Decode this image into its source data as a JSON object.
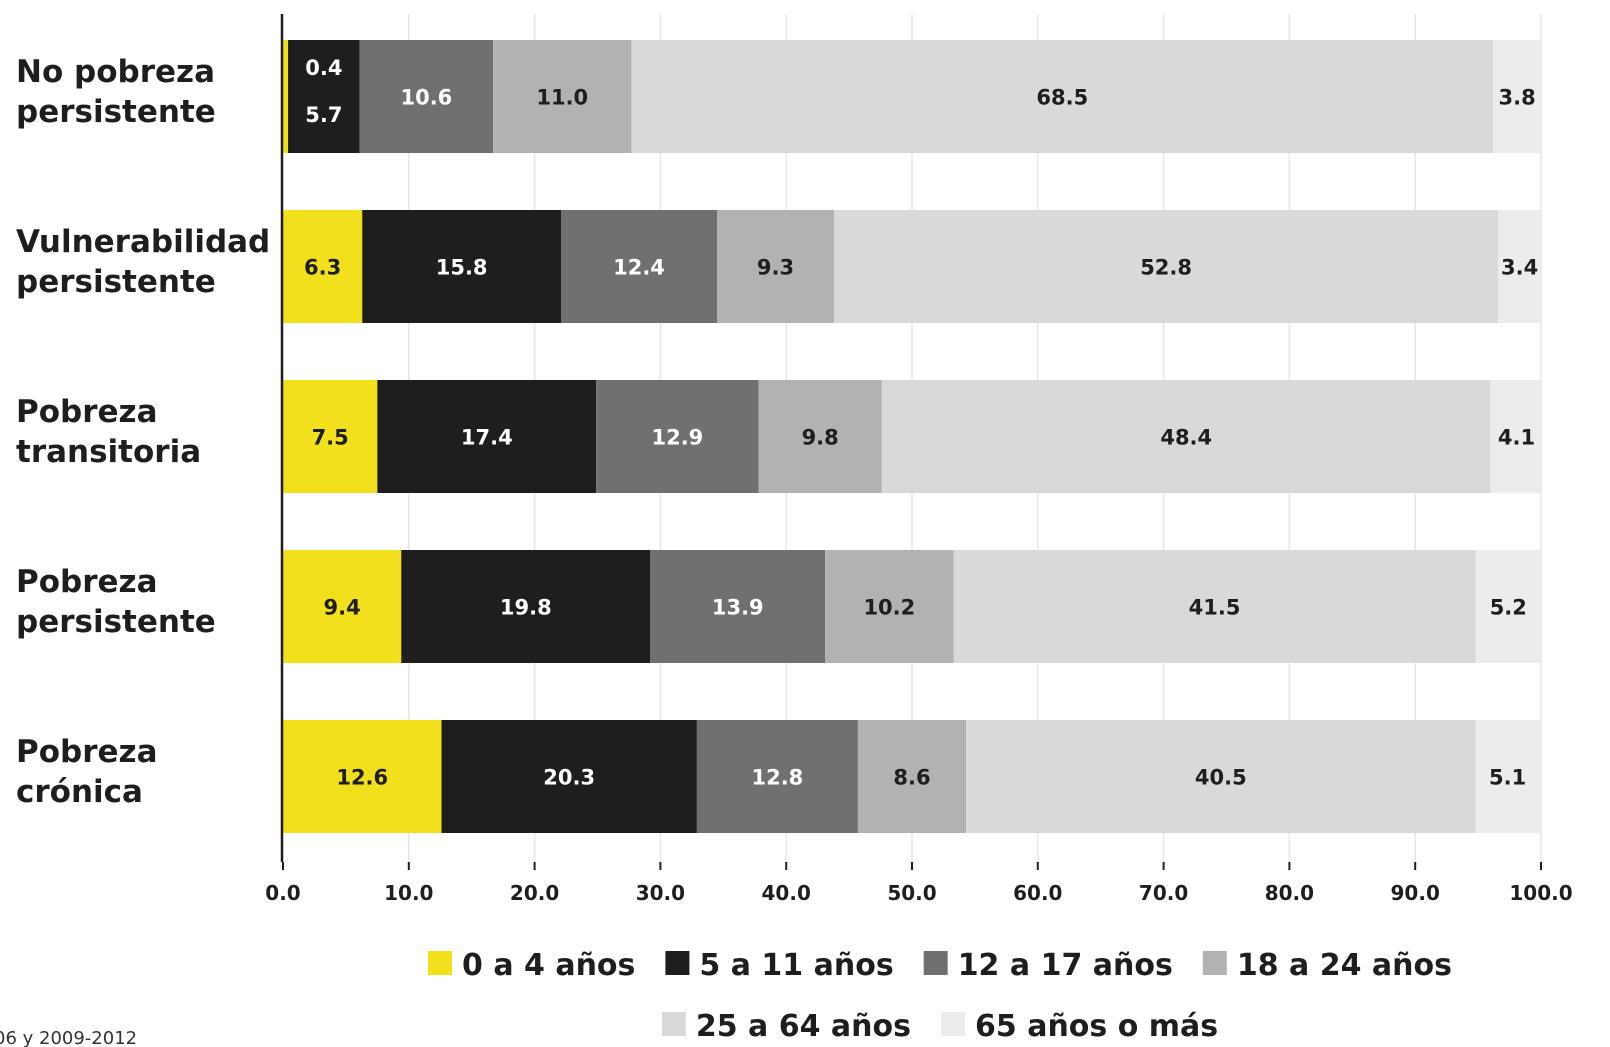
{
  "chart_data": {
    "type": "bar",
    "orientation": "horizontal",
    "stacked": true,
    "title": "",
    "xlabel": "",
    "ylabel": "",
    "xlim": [
      0,
      100
    ],
    "x_ticks": [
      "0.0",
      "10.0",
      "20.0",
      "30.0",
      "40.0",
      "50.0",
      "60.0",
      "70.0",
      "80.0",
      "90.0",
      "100.0"
    ],
    "grid": "vertical",
    "legend_position": "bottom",
    "categories": [
      [
        "No pobreza",
        "persistente"
      ],
      [
        "Vulnerabilidad",
        "persistente"
      ],
      [
        "Pobreza",
        "transitoria"
      ],
      [
        "Pobreza",
        "persistente"
      ],
      [
        "Pobreza",
        "crónica"
      ]
    ],
    "series": [
      {
        "name": "0 a 4 años",
        "color": "#f1e01b",
        "label_color": "#1e1e1e",
        "values": [
          0.4,
          6.3,
          7.5,
          9.4,
          12.6
        ]
      },
      {
        "name": "5 a 11 años",
        "color": "#1e1e1e",
        "label_color": "#ffffff",
        "values": [
          5.7,
          15.8,
          17.4,
          19.8,
          20.3
        ]
      },
      {
        "name": "12 a 17 años",
        "color": "#707070",
        "label_color": "#ffffff",
        "values": [
          10.6,
          12.4,
          12.9,
          13.9,
          12.8
        ]
      },
      {
        "name": "18 a 24 años",
        "color": "#b2b2b2",
        "label_color": "#1e1e1e",
        "values": [
          11.0,
          9.3,
          9.8,
          10.2,
          8.6
        ]
      },
      {
        "name": "25 a 64 años",
        "color": "#d9d9d9",
        "label_color": "#1e1e1e",
        "values": [
          68.5,
          52.8,
          48.4,
          41.5,
          40.5
        ]
      },
      {
        "name": "65 años o más",
        "color": "#ececec",
        "label_color": "#1e1e1e",
        "values": [
          3.8,
          3.4,
          4.1,
          5.2,
          5.1
        ]
      }
    ]
  },
  "footnote": "06 y 2009-2012"
}
